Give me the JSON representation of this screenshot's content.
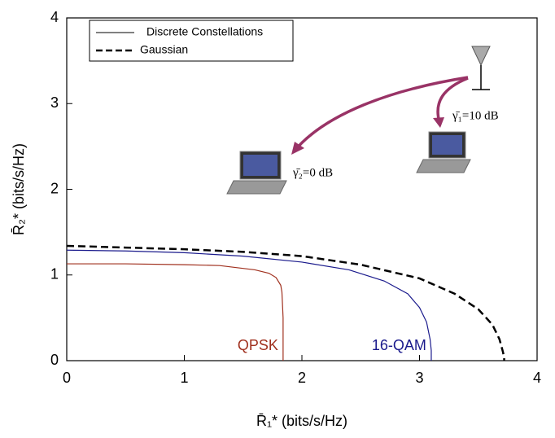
{
  "chart_data": {
    "type": "line",
    "xlabel": "R̄₁* (bits/s/Hz)",
    "ylabel": "R̄₂* (bits/s/Hz)",
    "xlim": [
      0,
      4
    ],
    "ylim": [
      0,
      4
    ],
    "xticks": [
      0,
      1,
      2,
      3,
      4
    ],
    "yticks": [
      0,
      1,
      2,
      3,
      4
    ],
    "grid": false,
    "legend": [
      {
        "label": "Discrete Constellations",
        "dash": false
      },
      {
        "label": "Gaussian",
        "dash": true
      }
    ],
    "annotations": [
      "γ̄₁=10 dB",
      "γ̄₂=0 dB"
    ],
    "series": [
      {
        "name": "QPSK",
        "color": "#a0301e",
        "dash": false,
        "x": [
          0,
          0.5,
          1,
          1.3,
          1.6,
          1.72,
          1.78,
          1.82,
          1.83,
          1.84,
          1.84
        ],
        "values": [
          1.13,
          1.13,
          1.12,
          1.11,
          1.06,
          1.02,
          0.97,
          0.88,
          0.8,
          0.5,
          0
        ]
      },
      {
        "name": "16-QAM",
        "color": "#1a1a8c",
        "dash": false,
        "x": [
          0,
          0.5,
          1,
          1.5,
          2,
          2.4,
          2.7,
          2.9,
          3.0,
          3.06,
          3.09,
          3.1,
          3.1
        ],
        "values": [
          1.29,
          1.28,
          1.26,
          1.22,
          1.15,
          1.06,
          0.93,
          0.78,
          0.62,
          0.45,
          0.25,
          0.12,
          0
        ]
      },
      {
        "color": "#000000",
        "dash": true,
        "x": [
          0,
          0.5,
          1,
          1.5,
          2,
          2.5,
          3,
          3.3,
          3.5,
          3.62,
          3.68,
          3.71,
          3.72,
          3.72
        ],
        "values": [
          1.34,
          1.32,
          1.3,
          1.27,
          1.22,
          1.12,
          0.96,
          0.78,
          0.6,
          0.42,
          0.25,
          0.1,
          0.03,
          0
        ]
      }
    ]
  }
}
